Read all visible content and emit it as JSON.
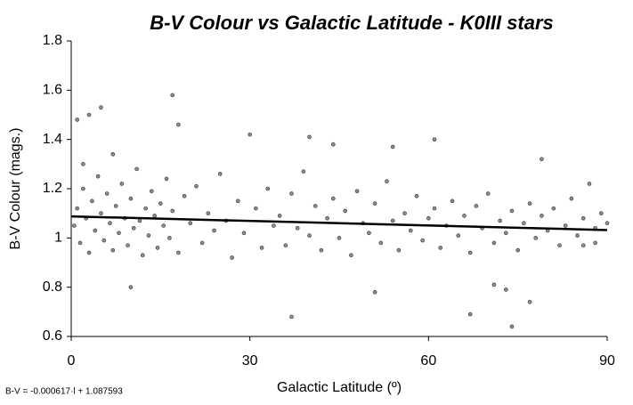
{
  "chart_data": {
    "type": "scatter",
    "title": "B-V Colour vs Galactic Latitude -  K0III stars",
    "x_label": "Galactic Latitude (º)",
    "y_label": "B-V Colour (mags.)",
    "annotation": "B-V = -0.000617·l + 1.087593",
    "trendline": {
      "slope": -0.000617,
      "intercept": 1.087593,
      "color": "#000000"
    },
    "xlim": [
      0,
      90
    ],
    "xticks": [
      0,
      30,
      60,
      90
    ],
    "ylim": [
      0.6,
      1.8
    ],
    "yticks": [
      0.6,
      0.8,
      1,
      1.2,
      1.4,
      1.6,
      1.8
    ],
    "grid": false,
    "series": [
      {
        "color": "#8c8c8c",
        "x": [
          0.5,
          1,
          1.5,
          2,
          2.5,
          3,
          3.5,
          4,
          4.5,
          5,
          5.5,
          6,
          6.5,
          7,
          7.5,
          8,
          8.5,
          9,
          9.5,
          10,
          10.5,
          11,
          11.5,
          12,
          12.5,
          13,
          13.5,
          14,
          14.5,
          15,
          15.5,
          16,
          16.5,
          17,
          18,
          19,
          20,
          21,
          22,
          23,
          24,
          25,
          26,
          27,
          28,
          29,
          31,
          32,
          33,
          34,
          35,
          36,
          37,
          38,
          39,
          40,
          41,
          42,
          43,
          44,
          45,
          46,
          47,
          48,
          49,
          50,
          51,
          52,
          53,
          54,
          55,
          56,
          57,
          58,
          59,
          60,
          61,
          62,
          63,
          64,
          65,
          66,
          67,
          68,
          69,
          70,
          71,
          72,
          73,
          74,
          75,
          76,
          77,
          78,
          79,
          80,
          81,
          82,
          83,
          84,
          85,
          86,
          87,
          88,
          89,
          17,
          5,
          3,
          1,
          18,
          30,
          40,
          44,
          61,
          54,
          37,
          74,
          67,
          10,
          51,
          71,
          73,
          77,
          86,
          88,
          90,
          79,
          7,
          2
        ],
        "values": [
          1.05,
          1.12,
          0.98,
          1.2,
          1.08,
          0.94,
          1.15,
          1.03,
          1.25,
          1.1,
          0.99,
          1.18,
          1.06,
          0.95,
          1.13,
          1.02,
          1.22,
          1.08,
          0.97,
          1.16,
          1.04,
          1.28,
          1.07,
          0.93,
          1.12,
          1.01,
          1.19,
          1.09,
          0.96,
          1.14,
          1.05,
          1.24,
          1.0,
          1.11,
          0.94,
          1.17,
          1.06,
          1.21,
          0.98,
          1.1,
          1.03,
          1.26,
          1.07,
          0.92,
          1.15,
          1.02,
          1.12,
          0.96,
          1.2,
          1.05,
          1.09,
          0.97,
          1.18,
          1.04,
          1.27,
          1.01,
          1.13,
          0.95,
          1.08,
          1.16,
          1.0,
          1.11,
          0.93,
          1.19,
          1.06,
          1.02,
          1.14,
          0.98,
          1.23,
          1.07,
          0.95,
          1.1,
          1.03,
          1.17,
          0.99,
          1.08,
          1.12,
          0.96,
          1.05,
          1.15,
          1.01,
          1.09,
          0.94,
          1.13,
          1.04,
          1.18,
          0.98,
          1.07,
          1.02,
          1.11,
          0.95,
          1.06,
          1.14,
          1.0,
          1.09,
          1.03,
          1.12,
          0.97,
          1.05,
          1.16,
          1.01,
          1.08,
          1.22,
          1.04,
          1.1,
          1.58,
          1.53,
          1.5,
          1.48,
          1.46,
          1.42,
          1.41,
          1.38,
          1.4,
          1.37,
          0.68,
          0.64,
          0.69,
          0.8,
          0.78,
          0.81,
          0.79,
          0.74,
          0.97,
          0.98,
          1.06,
          1.32,
          1.34,
          1.3
        ]
      }
    ]
  }
}
